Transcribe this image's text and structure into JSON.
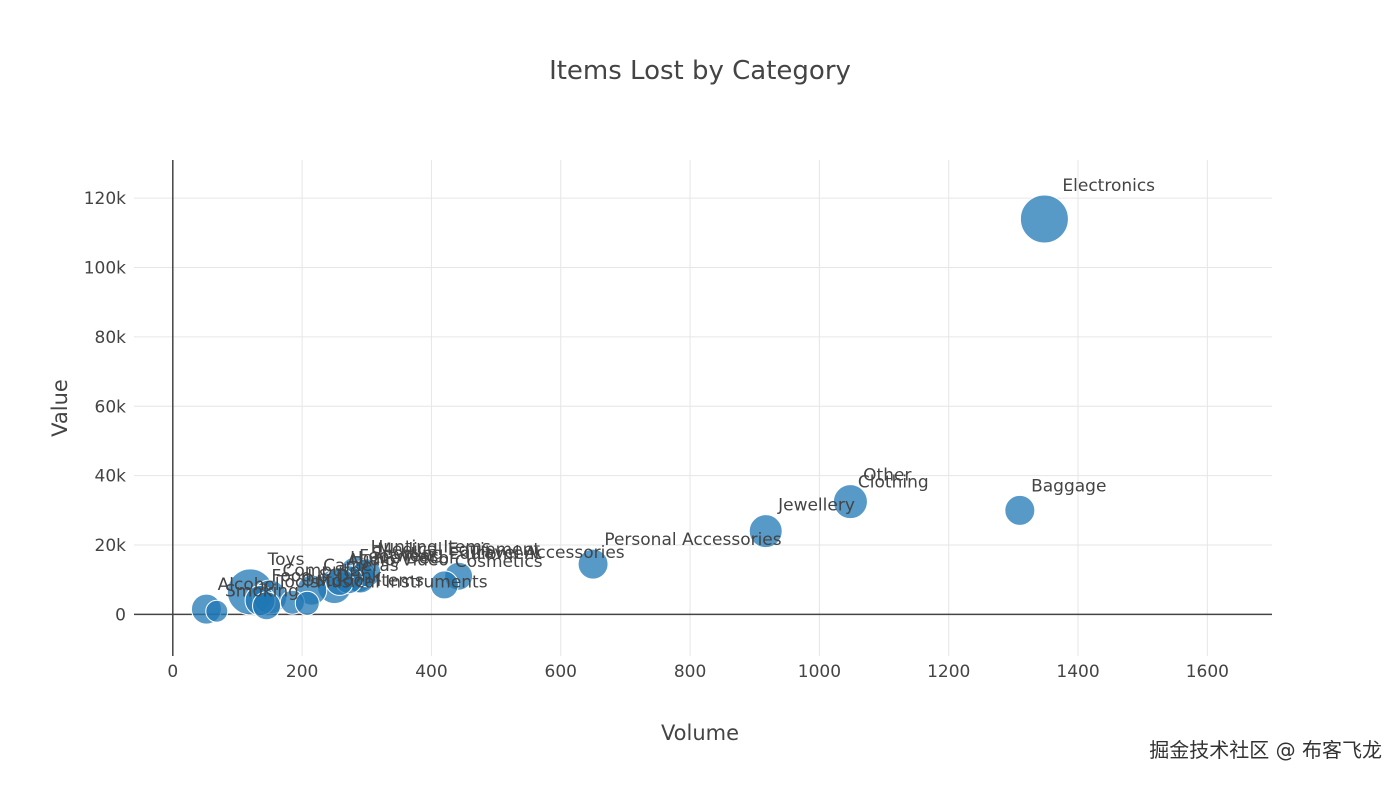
{
  "watermark": "掘金技术社区 @ 布客飞龙",
  "chart_data": {
    "type": "scatter",
    "title": "Items Lost by Category",
    "xlabel": "Volume",
    "ylabel": "Value",
    "xlim": [
      -60,
      1700
    ],
    "ylim": [
      -12000,
      131000
    ],
    "x_ticks": [
      0,
      200,
      400,
      600,
      800,
      1000,
      1200,
      1400,
      1600
    ],
    "x_tick_labels": [
      "0",
      "200",
      "400",
      "600",
      "800",
      "1000",
      "1200",
      "1400",
      "1600"
    ],
    "y_ticks": [
      0,
      20000,
      40000,
      60000,
      80000,
      100000,
      120000
    ],
    "y_tick_labels": [
      "0",
      "20k",
      "40k",
      "60k",
      "80k",
      "100k",
      "120k"
    ],
    "grid": true,
    "marker_color": "#1f77b4",
    "points": [
      {
        "label": "Electronics",
        "x": 1348,
        "y": 114000,
        "size": 48
      },
      {
        "label": "Other",
        "x": 1048,
        "y": 32500,
        "size": 34
      },
      {
        "label": "Baggage",
        "x": 1310,
        "y": 30000,
        "size": 30
      },
      {
        "label": "Clothing",
        "x": 1048,
        "y": 32500,
        "size": 0
      },
      {
        "label": "Jewellery",
        "x": 917,
        "y": 24000,
        "size": 33
      },
      {
        "label": "Personal Accessories",
        "x": 650,
        "y": 14500,
        "size": 30
      },
      {
        "label": "Travel Accessories",
        "x": 442,
        "y": 11000,
        "size": 28
      },
      {
        "label": "Cosmetics",
        "x": 420,
        "y": 8500,
        "size": 28
      },
      {
        "label": "Hunting Items",
        "x": 285,
        "y": 11500,
        "size": 36
      },
      {
        "label": "Medical Equipment",
        "x": 300,
        "y": 12000,
        "size": 28
      },
      {
        "label": "Sporting Equipment",
        "x": 290,
        "y": 10500,
        "size": 30
      },
      {
        "label": "Footwear",
        "x": 272,
        "y": 10000,
        "size": 28
      },
      {
        "label": "Home Decor",
        "x": 258,
        "y": 9500,
        "size": 28
      },
      {
        "label": "Audio/Video",
        "x": 250,
        "y": 8000,
        "size": 34
      },
      {
        "label": "Cameras",
        "x": 215,
        "y": 7000,
        "size": 30
      },
      {
        "label": "Toys",
        "x": 120,
        "y": 6500,
        "size": 46
      },
      {
        "label": "Computer",
        "x": 150,
        "y": 5000,
        "size": 34
      },
      {
        "label": "Food & Drink",
        "x": 135,
        "y": 4000,
        "size": 30
      },
      {
        "label": "Outdoor Items",
        "x": 185,
        "y": 3500,
        "size": 24
      },
      {
        "label": "Musical Instruments",
        "x": 208,
        "y": 3200,
        "size": 24
      },
      {
        "label": "Tools",
        "x": 145,
        "y": 2500,
        "size": 28
      },
      {
        "label": "Alcohol",
        "x": 52,
        "y": 1500,
        "size": 30
      },
      {
        "label": "Smoking",
        "x": 68,
        "y": 900,
        "size": 22
      }
    ]
  }
}
